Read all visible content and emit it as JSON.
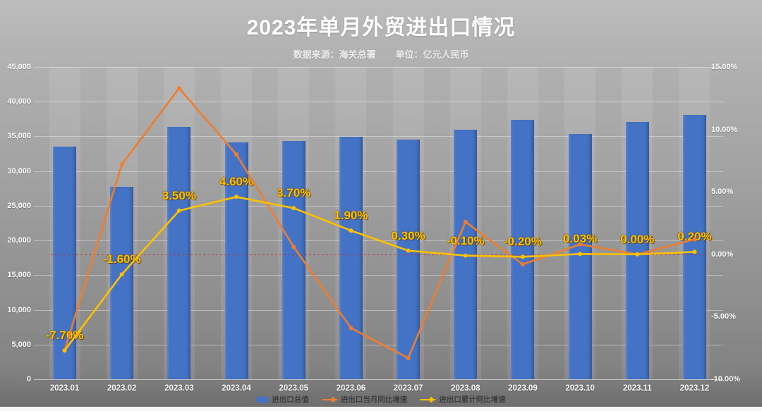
{
  "title": "2023年单月外贸进出口情况",
  "subtitle": {
    "source_label": "数据来源：海关总署",
    "unit_label": "单位：亿元人民币"
  },
  "colors": {
    "bar_blue": "#4472c4",
    "line_orange": "#ed7d31",
    "line_yellow": "#ffc000",
    "zero_line_red": "#be2d28",
    "background_top_gray": "#bcbcbc",
    "background_bottom_gray": "#6e6e6e"
  },
  "chart_data": {
    "type": "combo-bar-line",
    "categories": [
      "2023.01",
      "2023.02",
      "2023.03",
      "2023.04",
      "2023.05",
      "2023.06",
      "2023.07",
      "2023.08",
      "2023.09",
      "2023.10",
      "2023.11",
      "2023.12"
    ],
    "series": [
      {
        "name": "进出口总值",
        "type": "bar",
        "axis": "left",
        "color": "#4472c4",
        "values": [
          33500,
          27700,
          36400,
          34100,
          34300,
          34900,
          34500,
          36000,
          37400,
          35400,
          37100,
          38100
        ]
      },
      {
        "name": "进出口当月同比增速",
        "type": "line",
        "axis": "right",
        "color": "#ed7d31",
        "values": [
          -7.7,
          7.2,
          13.3,
          8.0,
          0.6,
          -5.9,
          -8.3,
          2.6,
          -0.8,
          0.8,
          0.0,
          1.2
        ]
      },
      {
        "name": "进出口累计同比增速",
        "type": "line",
        "axis": "right",
        "color": "#ffc000",
        "values": [
          -7.7,
          -1.6,
          3.5,
          4.6,
          3.7,
          1.9,
          0.3,
          -0.1,
          -0.2,
          0.03,
          0.0,
          0.2
        ],
        "point_labels": [
          "-7.70%",
          "-1.60%",
          "3.50%",
          "4.60%",
          "3.70%",
          "1.90%",
          "0.30%",
          "-0.10%",
          "-0.20%",
          "0.03%",
          "0.00%",
          "0.20%"
        ]
      }
    ],
    "left_axis": {
      "min": 0,
      "max": 45000,
      "step": 5000,
      "tick_labels": [
        "45,000",
        "40,000",
        "35,000",
        "30,000",
        "25,000",
        "20,000",
        "15,000",
        "10,000",
        "5,000",
        "0"
      ]
    },
    "right_axis": {
      "min": -10,
      "max": 15,
      "step": 5,
      "tick_labels": [
        "15.00%",
        "10.00%",
        "5.00%",
        "0.00%",
        "-5.00%",
        "-10.00%"
      ]
    },
    "zero_reference_line": {
      "axis": "right",
      "value": 0,
      "style": "dotted-red"
    },
    "grid": "horizontal",
    "legend_position": "bottom"
  }
}
